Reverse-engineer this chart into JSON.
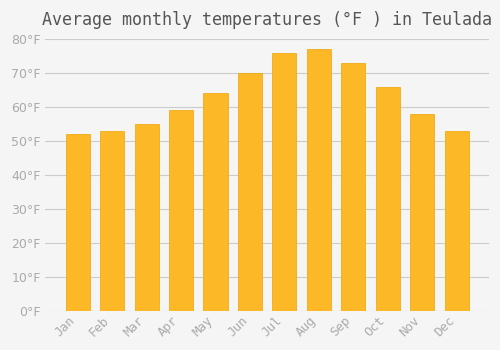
{
  "title": "Average monthly temperatures (°F ) in Teulada",
  "months": [
    "Jan",
    "Feb",
    "Mar",
    "Apr",
    "May",
    "Jun",
    "Jul",
    "Aug",
    "Sep",
    "Oct",
    "Nov",
    "Dec"
  ],
  "values": [
    52,
    53,
    55,
    59,
    64,
    70,
    76,
    77,
    73,
    66,
    58,
    53
  ],
  "bar_color_face": "#FDB827",
  "bar_color_edge": "#F0A500",
  "background_color": "#F5F5F5",
  "grid_color": "#CCCCCC",
  "ylim": [
    0,
    80
  ],
  "yticks": [
    0,
    10,
    20,
    30,
    40,
    50,
    60,
    70,
    80
  ],
  "title_fontsize": 12,
  "tick_fontsize": 9,
  "tick_color": "#AAAAAA",
  "title_color": "#555555"
}
